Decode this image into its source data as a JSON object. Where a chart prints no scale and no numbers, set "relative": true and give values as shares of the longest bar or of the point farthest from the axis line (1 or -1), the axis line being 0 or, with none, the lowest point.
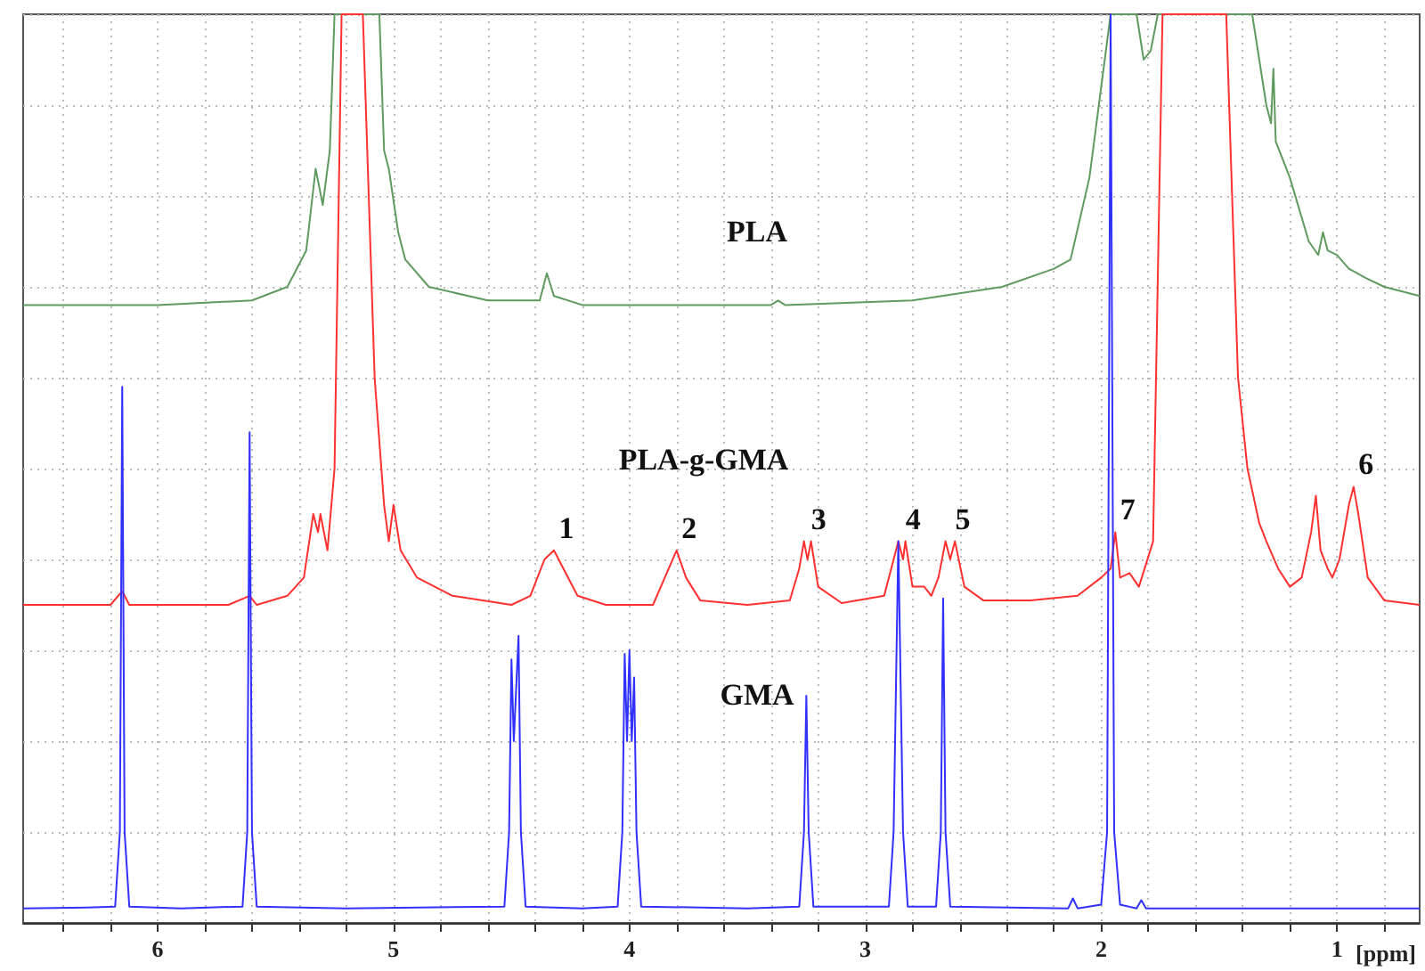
{
  "chart_data": {
    "type": "line",
    "relative": true,
    "xlabel": "[ppm]",
    "xlim": [
      6.57,
      0.65
    ],
    "xticks": [
      {
        "value": 6.4,
        "label": null
      },
      {
        "value": 6.2,
        "label": null
      },
      6,
      {
        "value": 5.8,
        "label": null
      },
      {
        "value": 5.6,
        "label": null
      },
      {
        "value": 5.4,
        "label": null
      },
      {
        "value": 5.2,
        "label": null
      },
      5,
      {
        "value": 4.8,
        "label": null
      },
      {
        "value": 4.6,
        "label": null
      },
      {
        "value": 4.4,
        "label": null
      },
      {
        "value": 4.2,
        "label": null
      },
      4,
      {
        "value": 3.8,
        "label": null
      },
      {
        "value": 3.6,
        "label": null
      },
      {
        "value": 3.4,
        "label": null
      },
      {
        "value": 3.2,
        "label": null
      },
      3,
      {
        "value": 2.8,
        "label": null
      },
      {
        "value": 2.6,
        "label": null
      },
      {
        "value": 2.4,
        "label": null
      },
      {
        "value": 2.2,
        "label": null
      },
      2,
      {
        "value": 1.8,
        "label": null
      },
      {
        "value": 1.6,
        "label": null
      },
      {
        "value": 1.4,
        "label": null
      },
      {
        "value": 1.2,
        "label": null
      },
      1,
      {
        "value": 0.8,
        "label": null
      }
    ],
    "grid": true,
    "legend": false,
    "marker": "none",
    "line_style": "solid",
    "series": [
      {
        "name": "PLA",
        "color": "#5f9a5f",
        "x": [
          6.57,
          6.0,
          5.6,
          5.45,
          5.37,
          5.33,
          5.3,
          5.27,
          5.25,
          5.06,
          5.04,
          5.02,
          4.98,
          4.95,
          4.85,
          4.6,
          4.38,
          4.35,
          4.32,
          4.2,
          3.4,
          3.37,
          3.34,
          2.8,
          2.42,
          2.2,
          2.13,
          2.05,
          2.0,
          1.96,
          1.85,
          1.82,
          1.79,
          1.76,
          1.36,
          1.3,
          1.28,
          1.27,
          1.26,
          1.2,
          1.12,
          1.08,
          1.06,
          1.04,
          1.0,
          0.95,
          0.88,
          0.8,
          0.65
        ],
        "values": [
          0.68,
          0.68,
          0.685,
          0.7,
          0.74,
          0.83,
          0.79,
          0.85,
          1.0,
          1.0,
          0.85,
          0.83,
          0.76,
          0.73,
          0.7,
          0.685,
          0.685,
          0.715,
          0.69,
          0.68,
          0.68,
          0.685,
          0.68,
          0.685,
          0.7,
          0.72,
          0.73,
          0.82,
          0.92,
          1.0,
          1.0,
          0.95,
          0.96,
          1.0,
          1.0,
          0.9,
          0.88,
          0.94,
          0.86,
          0.82,
          0.75,
          0.735,
          0.76,
          0.74,
          0.735,
          0.72,
          0.71,
          0.7,
          0.69
        ]
      },
      {
        "name": "PLA-g-GMA",
        "color": "#ff3030",
        "x": [
          6.57,
          6.2,
          6.15,
          6.12,
          5.7,
          5.61,
          5.58,
          5.45,
          5.38,
          5.34,
          5.32,
          5.31,
          5.28,
          5.25,
          5.22,
          5.13,
          5.08,
          5.04,
          5.02,
          5.0,
          4.97,
          4.9,
          4.75,
          4.5,
          4.42,
          4.36,
          4.32,
          4.28,
          4.22,
          4.1,
          3.9,
          3.85,
          3.8,
          3.76,
          3.7,
          3.5,
          3.32,
          3.28,
          3.26,
          3.245,
          3.23,
          3.2,
          3.1,
          2.92,
          2.88,
          2.86,
          2.84,
          2.83,
          2.8,
          2.75,
          2.72,
          2.69,
          2.66,
          2.64,
          2.62,
          2.58,
          2.5,
          2.3,
          2.1,
          2.0,
          1.96,
          1.94,
          1.92,
          1.88,
          1.84,
          1.78,
          1.74,
          1.47,
          1.42,
          1.38,
          1.33,
          1.3,
          1.25,
          1.2,
          1.15,
          1.11,
          1.09,
          1.07,
          1.04,
          1.02,
          0.99,
          0.95,
          0.93,
          0.91,
          0.87,
          0.8,
          0.65
        ],
        "values": [
          0.35,
          0.35,
          0.365,
          0.35,
          0.35,
          0.36,
          0.35,
          0.36,
          0.38,
          0.45,
          0.43,
          0.45,
          0.41,
          0.5,
          1.0,
          1.0,
          0.6,
          0.46,
          0.42,
          0.46,
          0.41,
          0.38,
          0.36,
          0.35,
          0.36,
          0.4,
          0.41,
          0.39,
          0.36,
          0.35,
          0.35,
          0.38,
          0.41,
          0.38,
          0.355,
          0.35,
          0.355,
          0.39,
          0.42,
          0.4,
          0.42,
          0.37,
          0.352,
          0.36,
          0.4,
          0.42,
          0.4,
          0.42,
          0.37,
          0.37,
          0.36,
          0.38,
          0.42,
          0.4,
          0.42,
          0.37,
          0.355,
          0.355,
          0.36,
          0.38,
          0.39,
          0.43,
          0.38,
          0.385,
          0.37,
          0.42,
          1.0,
          1.0,
          0.6,
          0.5,
          0.44,
          0.42,
          0.39,
          0.37,
          0.38,
          0.43,
          0.47,
          0.41,
          0.39,
          0.38,
          0.4,
          0.46,
          0.48,
          0.45,
          0.38,
          0.355,
          0.35
        ]
      },
      {
        "name": "GMA",
        "color": "#3030ff",
        "x": [
          6.57,
          6.3,
          6.18,
          6.16,
          6.15,
          6.14,
          6.12,
          5.9,
          5.64,
          5.62,
          5.61,
          5.6,
          5.58,
          5.2,
          4.53,
          4.51,
          4.5,
          4.49,
          4.47,
          4.46,
          4.44,
          4.2,
          4.05,
          4.03,
          4.02,
          4.01,
          4.0,
          3.99,
          3.98,
          3.97,
          3.95,
          3.5,
          3.28,
          3.26,
          3.25,
          3.24,
          3.22,
          2.9,
          2.88,
          2.86,
          2.84,
          2.82,
          2.7,
          2.68,
          2.67,
          2.66,
          2.64,
          2.14,
          2.12,
          2.1,
          2.0,
          1.975,
          1.96,
          1.945,
          1.92,
          1.85,
          1.83,
          1.81,
          0.65
        ],
        "values": [
          0.016,
          0.017,
          0.018,
          0.1,
          0.59,
          0.1,
          0.018,
          0.016,
          0.018,
          0.1,
          0.54,
          0.1,
          0.018,
          0.016,
          0.018,
          0.1,
          0.29,
          0.2,
          0.316,
          0.1,
          0.018,
          0.016,
          0.018,
          0.1,
          0.296,
          0.2,
          0.3,
          0.2,
          0.27,
          0.1,
          0.018,
          0.016,
          0.018,
          0.1,
          0.25,
          0.1,
          0.018,
          0.018,
          0.1,
          0.42,
          0.1,
          0.018,
          0.018,
          0.1,
          0.357,
          0.1,
          0.018,
          0.016,
          0.027,
          0.016,
          0.02,
          0.1,
          1.0,
          0.1,
          0.02,
          0.016,
          0.025,
          0.016,
          0.016
        ]
      }
    ],
    "annotations": [
      {
        "text": "1",
        "x": 4.32,
        "y": 0.41
      },
      {
        "text": "2",
        "x": 3.8,
        "y": 0.41
      },
      {
        "text": "3",
        "x": 3.25,
        "y": 0.42
      },
      {
        "text": "4",
        "x": 2.85,
        "y": 0.42
      },
      {
        "text": "5",
        "x": 2.64,
        "y": 0.42
      },
      {
        "text": "6",
        "x": 0.93,
        "y": 0.48
      },
      {
        "text": "7",
        "x": 1.94,
        "y": 0.43
      }
    ]
  }
}
